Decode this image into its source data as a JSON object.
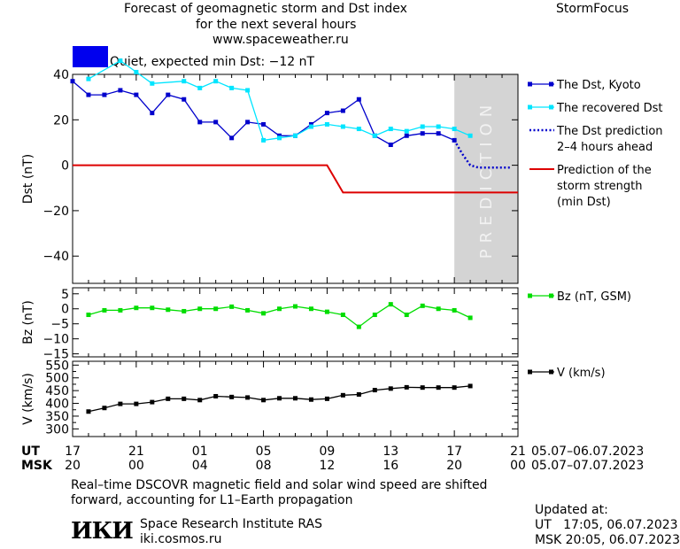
{
  "header": {
    "title_line1": "Forecast of geomagnetic storm and Dst index",
    "title_line2": "for the next several hours",
    "site": "www.spaceweather.ru",
    "brand": "StormFocus"
  },
  "status": {
    "text": "Quiet, expected min Dst: −12 nT",
    "color": "#0000ee"
  },
  "prediction_label": "PREDICTION",
  "chart_data": [
    {
      "type": "line",
      "ylabel": "Dst (nT)",
      "ylim": [
        -52,
        40
      ],
      "yticks": [
        40,
        20,
        0,
        -20,
        -40
      ],
      "x_unit": "hours since 05.07.2023 17:00 UT",
      "xlim": [
        0,
        28
      ],
      "prediction_span": [
        24,
        28
      ],
      "series": [
        {
          "name": "The Dst, Kyoto",
          "color": "#0000cc",
          "marker": "square",
          "x": [
            0,
            1,
            2,
            3,
            4,
            5,
            6,
            7,
            8,
            9,
            10,
            11,
            12,
            13,
            14,
            15,
            16,
            17,
            18,
            19,
            20,
            21,
            22,
            23,
            24
          ],
          "y": [
            37,
            31,
            31,
            33,
            31,
            23,
            31,
            29,
            19,
            19,
            12,
            19,
            18,
            13,
            13,
            18,
            23,
            24,
            29,
            13,
            9,
            13,
            14,
            14,
            11
          ]
        },
        {
          "name": "The recovered Dst",
          "color": "#00e5ff",
          "marker": "square",
          "x": [
            1,
            3,
            4,
            5,
            7,
            8,
            9,
            10,
            11,
            12,
            13,
            14,
            15,
            16,
            17,
            18,
            19,
            20,
            21,
            22,
            23,
            24,
            25
          ],
          "y": [
            38,
            46,
            41,
            36,
            37,
            34,
            37,
            34,
            33,
            11,
            12,
            13,
            17,
            18,
            17,
            16,
            13,
            16,
            15,
            17,
            17,
            16,
            13
          ]
        },
        {
          "name": "The Dst prediction\n2–4 hours ahead",
          "color": "#0000cc",
          "dash": "dotted",
          "x": [
            24,
            24.5,
            25,
            25.5,
            26,
            26.5,
            27,
            27.5
          ],
          "y": [
            11,
            5,
            0,
            -1,
            -1,
            -1,
            -1,
            -1
          ]
        },
        {
          "name": "Prediction of the\nstorm strength\n(min Dst)",
          "color": "#dd0000",
          "x": [
            0,
            16,
            17,
            28
          ],
          "y": [
            0,
            0,
            -12,
            -12
          ]
        }
      ]
    },
    {
      "type": "line",
      "ylabel": "Bz (nT)",
      "ylim": [
        -16,
        7
      ],
      "yticks": [
        5,
        0,
        -5,
        -10,
        -15
      ],
      "series": [
        {
          "name": "Bz (nT, GSM)",
          "color": "#00dd00",
          "marker": "square",
          "x": [
            1,
            2,
            3,
            4,
            5,
            6,
            7,
            8,
            9,
            10,
            11,
            12,
            13,
            14,
            15,
            16,
            17,
            18,
            19,
            20,
            21,
            22,
            23,
            24,
            25
          ],
          "y": [
            -2,
            -0.5,
            -0.5,
            0.3,
            0.3,
            -0.3,
            -0.8,
            0,
            0,
            0.7,
            -0.5,
            -1.5,
            0,
            0.8,
            0,
            -1,
            -2,
            -6,
            -2,
            1.5,
            -2,
            1,
            0,
            -0.5,
            -3
          ]
        }
      ]
    },
    {
      "type": "line",
      "ylabel": "V (km/s)",
      "ylim": [
        270,
        565
      ],
      "yticks": [
        550,
        500,
        450,
        400,
        350,
        300
      ],
      "minor_yticks": [
        525,
        475,
        425,
        375,
        325
      ],
      "series": [
        {
          "name": "V (km/s)",
          "color": "#000000",
          "marker": "square",
          "x": [
            1,
            2,
            3,
            4,
            5,
            6,
            7,
            8,
            9,
            10,
            11,
            12,
            13,
            14,
            15,
            16,
            17,
            18,
            19,
            20,
            21,
            22,
            23,
            24,
            25
          ],
          "y": [
            368,
            382,
            398,
            398,
            405,
            418,
            418,
            413,
            428,
            425,
            423,
            413,
            420,
            420,
            415,
            418,
            432,
            435,
            452,
            458,
            463,
            462,
            462,
            462,
            468
          ]
        }
      ]
    }
  ],
  "time_axis": {
    "ut_label": "UT",
    "msk_label": "MSK",
    "ut_ticks": [
      "17",
      "21",
      "01",
      "05",
      "09",
      "13",
      "17",
      "21"
    ],
    "msk_ticks": [
      "20",
      "00",
      "04",
      "08",
      "12",
      "16",
      "20",
      "00"
    ],
    "ut_dates": "05.07–06.07.2023",
    "msk_dates": "05.07–07.07.2023"
  },
  "footer": {
    "note_line1": "Real–time DSCOVR magnetic field and solar wind speed are shifted",
    "note_line2": "forward, accounting for L1–Earth propagation",
    "logo": "ИКИ",
    "institute": "Space Research Institute RAS",
    "url": "iki.cosmos.ru",
    "updated_label": "Updated at:",
    "updated_ut": "UT   17:05, 06.07.2023",
    "updated_msk": "MSK 20:05, 06.07.2023"
  }
}
